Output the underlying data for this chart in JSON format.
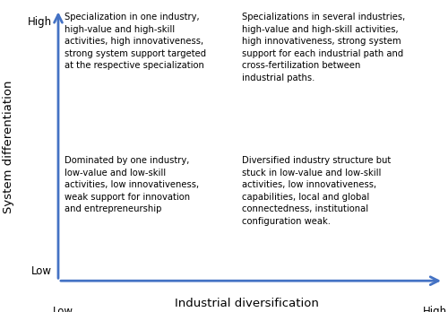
{
  "x_label": "Industrial diversification",
  "y_label": "System differentiation",
  "x_low": "Low",
  "x_high": "High",
  "y_low": "Low",
  "y_high": "High",
  "text_top_left": "Specialization in one industry,\nhigh-value and high-skill\nactivities, high innovativeness,\nstrong system support targeted\nat the respective specialization",
  "text_top_right": "Specializations in several industries,\nhigh-value and high-skill activities,\nhigh innovativeness, strong system\nsupport for each industrial path and\ncross-fertilization between\nindustrial paths.",
  "text_bottom_left": "Dominated by one industry,\nlow-value and low-skill\nactivities, low innovativeness,\nweak support for innovation\nand entrepreneurship",
  "text_bottom_right": "Diversified industry structure but\nstuck in low-value and low-skill\nactivities, low innovativeness,\ncapabilities, local and global\nconnectedness, institutional\nconfiguration weak.",
  "arrow_color": "#4472C4",
  "text_color": "#000000",
  "font_size": 7.2,
  "label_font_size": 9.5,
  "tick_font_size": 8.5
}
